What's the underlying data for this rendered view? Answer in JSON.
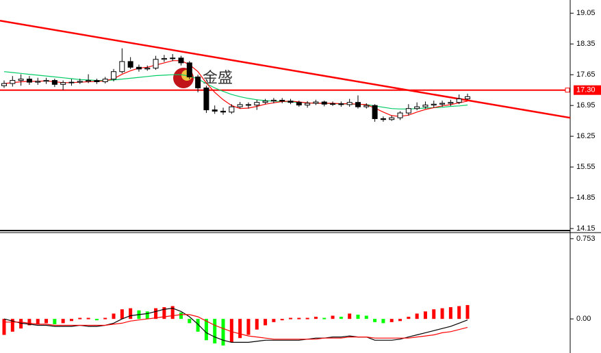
{
  "chart_data": [
    {
      "type": "candlestick",
      "ylim": [
        14.12,
        19.35
      ],
      "yticks": [
        19.05,
        18.35,
        17.65,
        {
          "value": 16.95,
          "label": "16.95"
        },
        16.25,
        15.55,
        14.85,
        14.15
      ],
      "up_color": "#ffffff",
      "down_color": "#000000",
      "open": [
        17.4,
        17.45,
        17.52,
        17.55,
        17.48,
        17.5,
        17.52,
        17.43,
        17.47,
        17.48,
        17.5,
        17.52,
        17.49,
        17.55,
        17.72,
        17.95,
        17.82,
        17.78,
        17.8,
        18.0,
        18.02,
        18.03,
        17.92,
        17.6,
        17.35,
        16.85,
        16.82,
        16.8,
        16.92,
        16.97,
        16.96,
        17.02,
        17.05,
        17.07,
        17.05,
        17.02,
        16.96,
        17.0,
        17.03,
        16.98,
        16.99,
        16.97,
        17.02,
        16.92,
        16.95,
        16.65,
        16.63,
        16.67,
        16.78,
        16.88,
        16.92,
        16.96,
        16.98,
        17.0,
        17.02,
        17.1
      ],
      "high": [
        17.52,
        17.62,
        17.66,
        17.62,
        17.58,
        17.58,
        17.56,
        17.52,
        17.55,
        17.56,
        17.66,
        17.56,
        17.6,
        17.78,
        18.25,
        18.05,
        17.88,
        17.86,
        18.08,
        18.1,
        18.12,
        18.08,
        17.96,
        17.65,
        17.4,
        16.95,
        16.9,
        16.98,
        17.03,
        17.02,
        17.08,
        17.1,
        17.12,
        17.12,
        17.1,
        17.06,
        17.05,
        17.08,
        17.06,
        17.04,
        17.04,
        17.1,
        17.18,
        17.0,
        16.98,
        16.7,
        16.72,
        16.82,
        16.98,
        17.02,
        17.04,
        17.06,
        17.06,
        17.08,
        17.2,
        17.22
      ],
      "low": [
        17.35,
        17.38,
        17.4,
        17.42,
        17.42,
        17.44,
        17.37,
        17.3,
        17.4,
        17.44,
        17.46,
        17.44,
        17.45,
        17.5,
        17.68,
        17.78,
        17.72,
        17.74,
        17.76,
        17.94,
        17.96,
        17.86,
        17.55,
        17.25,
        16.78,
        16.76,
        16.74,
        16.76,
        16.88,
        16.88,
        16.85,
        16.98,
        17.0,
        17.0,
        16.98,
        16.92,
        16.9,
        16.96,
        16.93,
        16.94,
        16.92,
        16.92,
        16.88,
        16.88,
        16.58,
        16.58,
        16.6,
        16.62,
        16.72,
        16.84,
        16.88,
        16.9,
        16.92,
        16.94,
        16.98,
        17.08
      ],
      "close": [
        17.45,
        17.52,
        17.55,
        17.48,
        17.5,
        17.52,
        17.43,
        17.47,
        17.48,
        17.5,
        17.52,
        17.49,
        17.55,
        17.72,
        17.95,
        17.82,
        17.78,
        17.8,
        18.0,
        18.02,
        18.03,
        17.92,
        17.6,
        17.35,
        16.85,
        16.82,
        16.8,
        16.92,
        16.97,
        16.96,
        17.02,
        17.05,
        17.07,
        17.05,
        17.02,
        16.96,
        17.0,
        17.03,
        16.98,
        16.99,
        16.97,
        17.02,
        16.92,
        16.95,
        16.65,
        16.63,
        16.67,
        16.78,
        16.88,
        16.92,
        16.96,
        16.98,
        17.0,
        17.02,
        17.1,
        17.15
      ],
      "series": [
        {
          "color": "#00cc66",
          "values": [
            17.72,
            17.7,
            17.68,
            17.66,
            17.64,
            17.62,
            17.6,
            17.58,
            17.56,
            17.54,
            17.53,
            17.52,
            17.52,
            17.53,
            17.55,
            17.57,
            17.59,
            17.61,
            17.63,
            17.64,
            17.65,
            17.65,
            17.62,
            17.55,
            17.45,
            17.35,
            17.27,
            17.2,
            17.15,
            17.11,
            17.08,
            17.06,
            17.05,
            17.04,
            17.03,
            17.02,
            17.01,
            17.0,
            17.0,
            16.99,
            16.99,
            16.98,
            16.98,
            16.97,
            16.94,
            16.91,
            16.88,
            16.87,
            16.87,
            16.88,
            16.89,
            16.9,
            16.91,
            16.93,
            16.94,
            16.96
          ]
        },
        {
          "color": "#ff0000",
          "values": [
            17.45,
            17.47,
            17.49,
            17.5,
            17.5,
            17.51,
            17.49,
            17.47,
            17.47,
            17.48,
            17.49,
            17.5,
            17.51,
            17.56,
            17.66,
            17.74,
            17.8,
            17.82,
            17.87,
            17.92,
            17.97,
            17.97,
            17.88,
            17.72,
            17.46,
            17.25,
            17.08,
            16.95,
            16.88,
            16.89,
            16.93,
            16.98,
            17.01,
            17.04,
            17.05,
            17.03,
            17.01,
            17.0,
            17.0,
            17.0,
            16.99,
            16.99,
            16.98,
            16.97,
            16.89,
            16.8,
            16.72,
            16.7,
            16.73,
            16.8,
            16.86,
            16.9,
            16.94,
            16.97,
            17.01,
            17.05
          ]
        }
      ],
      "trendline": {
        "start": 18.88,
        "end": 16.67,
        "color": "#ff0000"
      },
      "price_line": {
        "value": 17.3,
        "label": "17.30",
        "color": "#ff0000"
      },
      "watermark": "金盛"
    },
    {
      "type": "macd",
      "ylim": [
        -0.32,
        0.81
      ],
      "yticks": [
        0.753,
        {
          "value": 0,
          "label": "0.00"
        }
      ],
      "up_color": "#ff0000",
      "down_color": "#00ff00",
      "histogram": [
        -0.15,
        -0.12,
        -0.09,
        -0.06,
        -0.05,
        -0.04,
        -0.05,
        -0.04,
        -0.02,
        0.01,
        0.01,
        0.0,
        0.01,
        0.05,
        0.09,
        0.1,
        0.08,
        0.07,
        0.1,
        0.11,
        0.12,
        0.06,
        -0.04,
        -0.12,
        -0.2,
        -0.23,
        -0.25,
        -0.22,
        -0.18,
        -0.15,
        -0.1,
        -0.06,
        -0.03,
        0.0,
        0.01,
        0.01,
        0.01,
        0.02,
        0.01,
        0.03,
        0.02,
        0.05,
        0.04,
        0.03,
        -0.03,
        -0.04,
        -0.03,
        -0.02,
        0.02,
        0.05,
        0.07,
        0.09,
        0.1,
        0.11,
        0.12,
        0.13
      ],
      "series": [
        {
          "color": "#000000",
          "values": [
            0.0,
            -0.02,
            -0.04,
            -0.05,
            -0.06,
            -0.06,
            -0.07,
            -0.07,
            -0.07,
            -0.06,
            -0.07,
            -0.07,
            -0.06,
            -0.04,
            0.0,
            0.03,
            0.04,
            0.05,
            0.07,
            0.09,
            0.1,
            0.07,
            0.02,
            -0.05,
            -0.13,
            -0.17,
            -0.2,
            -0.22,
            -0.22,
            -0.22,
            -0.21,
            -0.2,
            -0.2,
            -0.2,
            -0.2,
            -0.2,
            -0.19,
            -0.18,
            -0.18,
            -0.17,
            -0.17,
            -0.16,
            -0.17,
            -0.17,
            -0.2,
            -0.2,
            -0.2,
            -0.19,
            -0.17,
            -0.15,
            -0.13,
            -0.11,
            -0.09,
            -0.07,
            -0.04,
            -0.01
          ]
        },
        {
          "color": "#ff0000",
          "values": [
            -0.03,
            -0.03,
            -0.03,
            -0.04,
            -0.05,
            -0.05,
            -0.06,
            -0.06,
            -0.06,
            -0.06,
            -0.06,
            -0.06,
            -0.06,
            -0.05,
            -0.04,
            -0.02,
            -0.01,
            0.0,
            0.01,
            0.02,
            0.03,
            0.04,
            0.04,
            0.02,
            -0.02,
            -0.06,
            -0.09,
            -0.12,
            -0.14,
            -0.16,
            -0.17,
            -0.18,
            -0.19,
            -0.19,
            -0.19,
            -0.19,
            -0.19,
            -0.19,
            -0.18,
            -0.18,
            -0.18,
            -0.17,
            -0.17,
            -0.17,
            -0.18,
            -0.18,
            -0.18,
            -0.18,
            -0.18,
            -0.17,
            -0.16,
            -0.15,
            -0.13,
            -0.12,
            -0.1,
            -0.08
          ]
        }
      ]
    }
  ]
}
